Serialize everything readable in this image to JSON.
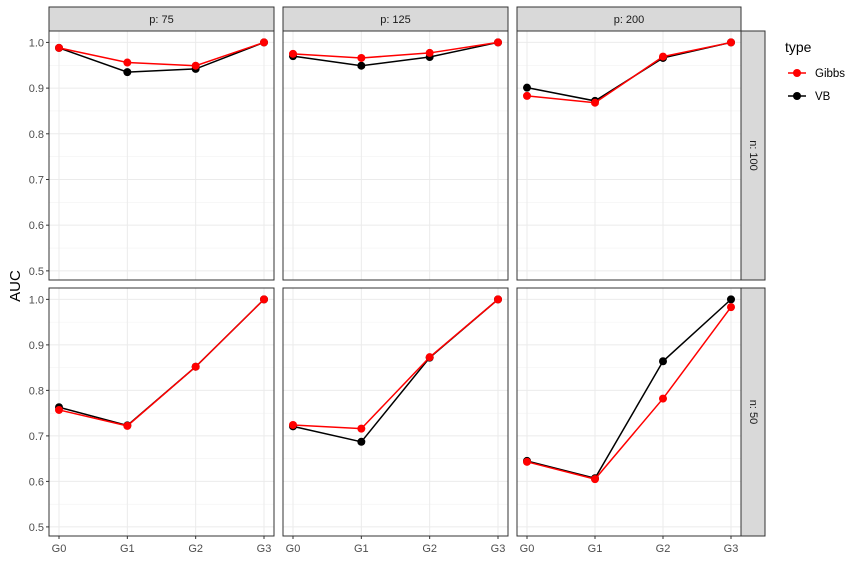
{
  "chart_data": {
    "type": "line",
    "ylabel": "AUC",
    "categories": [
      "G0",
      "G1",
      "G2",
      "G3"
    ],
    "ylim": [
      0.48,
      1.025
    ],
    "yticks": [
      "0.5",
      "0.6",
      "0.7",
      "0.8",
      "0.9",
      "1.0"
    ],
    "ytick_values": [
      0.5,
      0.6,
      0.7,
      0.8,
      0.9,
      1.0
    ],
    "col_facets": [
      "p: 75",
      "p: 125",
      "p: 200"
    ],
    "row_facets": [
      "n: 100",
      "n: 50"
    ],
    "grid": true,
    "legend": {
      "title": "type",
      "position": "right",
      "items": [
        {
          "label": "Gibbs",
          "color": "#ff0000"
        },
        {
          "label": "VB",
          "color": "#000000"
        }
      ]
    },
    "panels": [
      {
        "row": 0,
        "col": 0,
        "series": [
          {
            "type": "VB",
            "values": [
              0.988,
              0.935,
              0.942,
              1.0
            ]
          },
          {
            "type": "Gibbs",
            "values": [
              0.988,
              0.956,
              0.949,
              1.0
            ]
          }
        ]
      },
      {
        "row": 0,
        "col": 1,
        "series": [
          {
            "type": "VB",
            "values": [
              0.97,
              0.949,
              0.968,
              1.0
            ]
          },
          {
            "type": "Gibbs",
            "values": [
              0.975,
              0.966,
              0.977,
              1.0
            ]
          }
        ]
      },
      {
        "row": 0,
        "col": 2,
        "series": [
          {
            "type": "VB",
            "values": [
              0.901,
              0.872,
              0.966,
              1.0
            ]
          },
          {
            "type": "Gibbs",
            "values": [
              0.883,
              0.868,
              0.969,
              1.0
            ]
          }
        ]
      },
      {
        "row": 1,
        "col": 0,
        "series": [
          {
            "type": "VB",
            "values": [
              0.763,
              0.723,
              0.852,
              1.0
            ]
          },
          {
            "type": "Gibbs",
            "values": [
              0.757,
              0.722,
              0.852,
              1.0
            ]
          }
        ]
      },
      {
        "row": 1,
        "col": 1,
        "series": [
          {
            "type": "VB",
            "values": [
              0.721,
              0.687,
              0.872,
              1.0
            ]
          },
          {
            "type": "Gibbs",
            "values": [
              0.724,
              0.716,
              0.873,
              1.0
            ]
          }
        ]
      },
      {
        "row": 1,
        "col": 2,
        "series": [
          {
            "type": "VB",
            "values": [
              0.645,
              0.607,
              0.864,
              1.0
            ]
          },
          {
            "type": "Gibbs",
            "values": [
              0.643,
              0.605,
              0.782,
              0.983
            ]
          }
        ]
      }
    ]
  }
}
